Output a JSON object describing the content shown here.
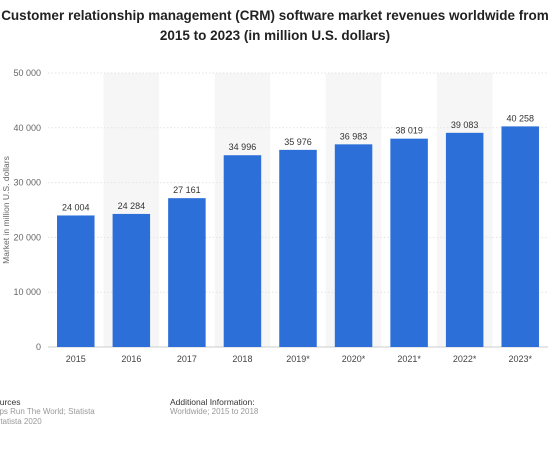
{
  "chart_data": {
    "type": "bar",
    "title": "Customer relationship management (CRM) software market revenues worldwide from 2015 to 2023 (in million U.S. dollars)",
    "title_lines": [
      "Customer relationship management (CRM) software market revenues worldwide from",
      "2015 to 2023 (in million U.S. dollars)"
    ],
    "xlabel": "",
    "ylabel": "Market in million U.S. dollars",
    "ylim": [
      0,
      50000
    ],
    "yticks": [
      0,
      10000,
      20000,
      30000,
      40000,
      50000
    ],
    "ytick_labels": [
      "0",
      "10 000",
      "20 000",
      "30 000",
      "40 000",
      "50 000"
    ],
    "categories": [
      "2015",
      "2016",
      "2017",
      "2018",
      "2019*",
      "2020*",
      "2021*",
      "2022*",
      "2023*"
    ],
    "values": [
      24004,
      24284,
      27161,
      34996,
      35976,
      36983,
      38019,
      39083,
      40258
    ],
    "value_labels": [
      "24 004",
      "24 284",
      "27 161",
      "34 996",
      "35 976",
      "36 983",
      "38 019",
      "39 083",
      "40 258"
    ],
    "bar_color": "#2d6fd8",
    "grid": true,
    "legend": "none"
  },
  "footer": {
    "sources_heading": "ources",
    "sources_lines": [
      "aps Run The World; Statista",
      "Statista 2020"
    ],
    "info_heading": "Additional Information:",
    "info_lines": [
      "Worldwide; 2015 to 2018"
    ]
  }
}
